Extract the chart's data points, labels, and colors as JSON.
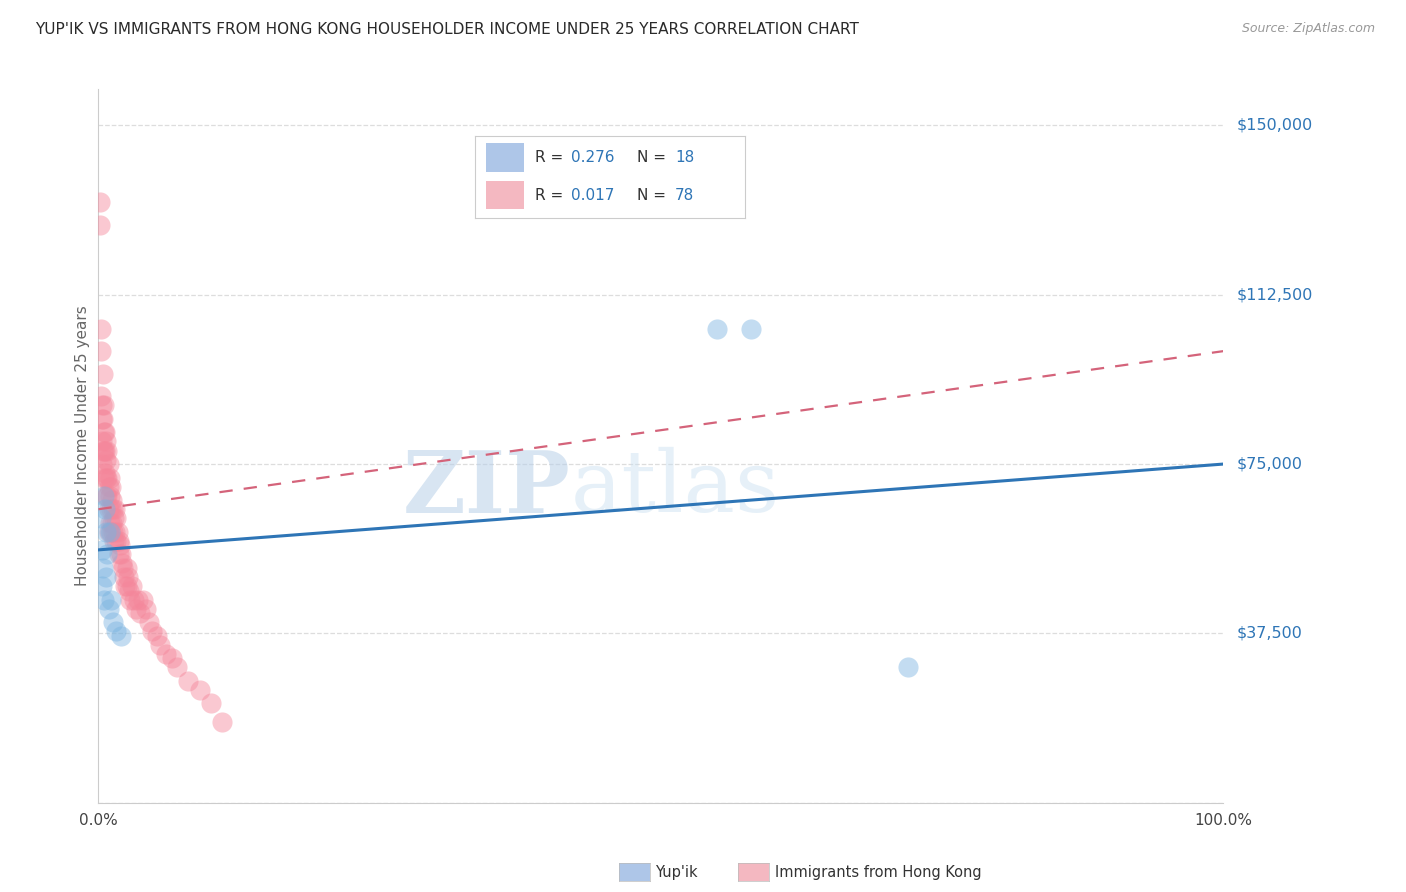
{
  "title": "YUP'IK VS IMMIGRANTS FROM HONG KONG HOUSEHOLDER INCOME UNDER 25 YEARS CORRELATION CHART",
  "source": "Source: ZipAtlas.com",
  "ylabel": "Householder Income Under 25 years",
  "ytick_values": [
    0,
    37500,
    75000,
    112500,
    150000
  ],
  "ytick_labels": [
    "",
    "$37,500",
    "$75,000",
    "$112,500",
    "$150,000"
  ],
  "ylim": [
    0,
    158000
  ],
  "xlim": [
    0.0,
    1.0
  ],
  "blue_scatter_color": "#7ab3e0",
  "pink_scatter_color": "#f4869a",
  "trendline_blue_color": "#2e75b6",
  "trendline_pink_color": "#d4637a",
  "background_color": "#ffffff",
  "grid_color": "#dddddd",
  "right_label_color": "#2e75b6",
  "watermark_color": "#ccdff0",
  "legend_box_blue": "#aec6e8",
  "legend_box_pink": "#f4b8c1",
  "yup_ik_x": [
    0.002,
    0.003,
    0.003,
    0.004,
    0.005,
    0.005,
    0.006,
    0.007,
    0.007,
    0.008,
    0.009,
    0.01,
    0.011,
    0.013,
    0.016,
    0.02,
    0.55,
    0.58,
    0.72
  ],
  "yup_ik_y": [
    63000,
    56000,
    48000,
    52000,
    68000,
    45000,
    65000,
    60000,
    50000,
    55000,
    43000,
    60000,
    45000,
    40000,
    38000,
    37000,
    105000,
    105000,
    30000
  ],
  "hk_x": [
    0.001,
    0.001,
    0.002,
    0.002,
    0.002,
    0.003,
    0.003,
    0.003,
    0.003,
    0.004,
    0.004,
    0.004,
    0.005,
    0.005,
    0.005,
    0.005,
    0.006,
    0.006,
    0.006,
    0.007,
    0.007,
    0.007,
    0.007,
    0.008,
    0.008,
    0.008,
    0.009,
    0.009,
    0.009,
    0.009,
    0.01,
    0.01,
    0.01,
    0.011,
    0.011,
    0.011,
    0.012,
    0.012,
    0.013,
    0.013,
    0.014,
    0.014,
    0.015,
    0.015,
    0.016,
    0.016,
    0.017,
    0.018,
    0.018,
    0.019,
    0.02,
    0.021,
    0.022,
    0.023,
    0.024,
    0.025,
    0.025,
    0.026,
    0.027,
    0.028,
    0.03,
    0.032,
    0.033,
    0.035,
    0.037,
    0.04,
    0.042,
    0.045,
    0.048,
    0.052,
    0.055,
    0.06,
    0.065,
    0.07,
    0.08,
    0.09,
    0.1,
    0.11
  ],
  "hk_y": [
    133000,
    128000,
    105000,
    100000,
    90000,
    88000,
    85000,
    80000,
    75000,
    95000,
    85000,
    78000,
    88000,
    82000,
    78000,
    72000,
    82000,
    78000,
    73000,
    80000,
    76000,
    72000,
    68000,
    78000,
    72000,
    68000,
    75000,
    70000,
    65000,
    60000,
    72000,
    68000,
    62000,
    70000,
    65000,
    60000,
    67000,
    62000,
    65000,
    60000,
    63000,
    58000,
    65000,
    60000,
    63000,
    58000,
    60000,
    58000,
    55000,
    57000,
    55000,
    53000,
    52000,
    50000,
    48000,
    52000,
    48000,
    50000,
    47000,
    45000,
    48000,
    45000,
    43000,
    45000,
    42000,
    45000,
    43000,
    40000,
    38000,
    37000,
    35000,
    33000,
    32000,
    30000,
    27000,
    25000,
    22000,
    18000
  ],
  "blue_trendline_x0": 0.0,
  "blue_trendline_y0": 56000,
  "blue_trendline_x1": 1.0,
  "blue_trendline_y1": 75000,
  "pink_trendline_x0": 0.0,
  "pink_trendline_y0": 65000,
  "pink_trendline_x1": 1.0,
  "pink_trendline_y1": 100000
}
